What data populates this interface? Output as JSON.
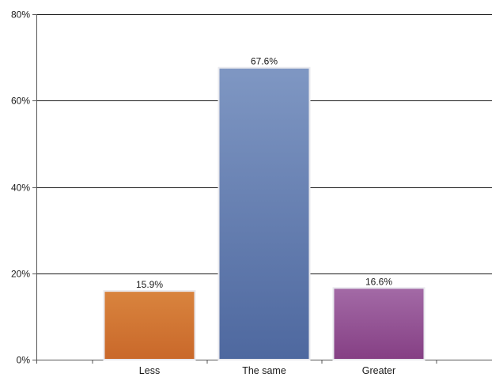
{
  "chart_data": {
    "type": "bar",
    "categories": [
      "Less",
      "The same",
      "Greater"
    ],
    "values": [
      15.9,
      67.6,
      16.6
    ],
    "data_labels": [
      "15.9%",
      "67.6%",
      "16.6%"
    ],
    "ylim": [
      0,
      80
    ],
    "y_ticks": [
      0,
      20,
      40,
      60,
      80
    ],
    "y_tick_labels": [
      "0%",
      "20%",
      "40%",
      "60%",
      "80%"
    ],
    "grid": true,
    "legend": "none",
    "title": "",
    "xlabel": "",
    "ylabel": "",
    "colors": {
      "bars": [
        {
          "top": "#d9843e",
          "bottom": "#c9682a"
        },
        {
          "top": "#7f97c3",
          "bottom": "#4e689f"
        },
        {
          "top": "#a36aa6",
          "bottom": "#853f84"
        }
      ],
      "bar_border": "#e9e9ee",
      "gridline": "#1a1a1a",
      "axis": "#555555"
    }
  }
}
